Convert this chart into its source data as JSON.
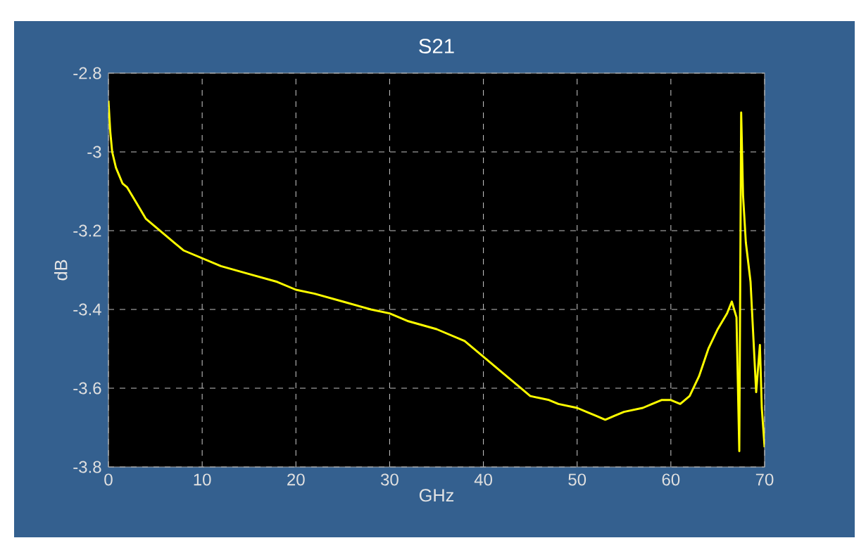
{
  "chart_data": {
    "type": "line",
    "title": "S21",
    "xlabel": "GHz",
    "ylabel": "dB",
    "x": [
      0,
      0.2,
      0.4,
      0.8,
      1.5,
      2,
      3,
      4,
      5,
      6,
      7,
      8,
      10,
      12,
      15,
      18,
      20,
      22,
      25,
      28,
      30,
      32,
      35,
      38,
      40,
      42,
      44,
      45,
      47,
      48,
      50,
      51,
      52,
      53,
      54,
      55,
      57,
      58,
      59,
      60,
      61,
      62,
      63,
      64,
      65,
      66,
      66.5,
      67,
      67.3,
      67.5,
      67.7,
      68,
      68.5,
      68.8,
      69.1,
      69.5,
      69.7,
      70
    ],
    "series": [
      {
        "color": "#ffff00",
        "values": [
          -2.87,
          -2.95,
          -3.0,
          -3.04,
          -3.08,
          -3.09,
          -3.13,
          -3.17,
          -3.19,
          -3.21,
          -3.23,
          -3.25,
          -3.27,
          -3.29,
          -3.31,
          -3.33,
          -3.35,
          -3.36,
          -3.38,
          -3.4,
          -3.41,
          -3.43,
          -3.45,
          -3.48,
          -3.52,
          -3.56,
          -3.6,
          -3.62,
          -3.63,
          -3.64,
          -3.65,
          -3.66,
          -3.67,
          -3.68,
          -3.67,
          -3.66,
          -3.65,
          -3.64,
          -3.63,
          -3.63,
          -3.64,
          -3.62,
          -3.57,
          -3.5,
          -3.45,
          -3.41,
          -3.38,
          -3.42,
          -3.76,
          -2.9,
          -3.11,
          -3.23,
          -3.33,
          -3.47,
          -3.61,
          -3.49,
          -3.65,
          -3.75
        ]
      }
    ],
    "xlim": [
      0,
      70
    ],
    "ylim": [
      -3.8,
      -2.8
    ],
    "xticks": [
      0,
      10,
      20,
      30,
      40,
      50,
      60,
      70
    ],
    "yticks": [
      -3.8,
      -3.6,
      -3.4,
      -3.2,
      -3,
      -2.8
    ],
    "grid": true
  }
}
